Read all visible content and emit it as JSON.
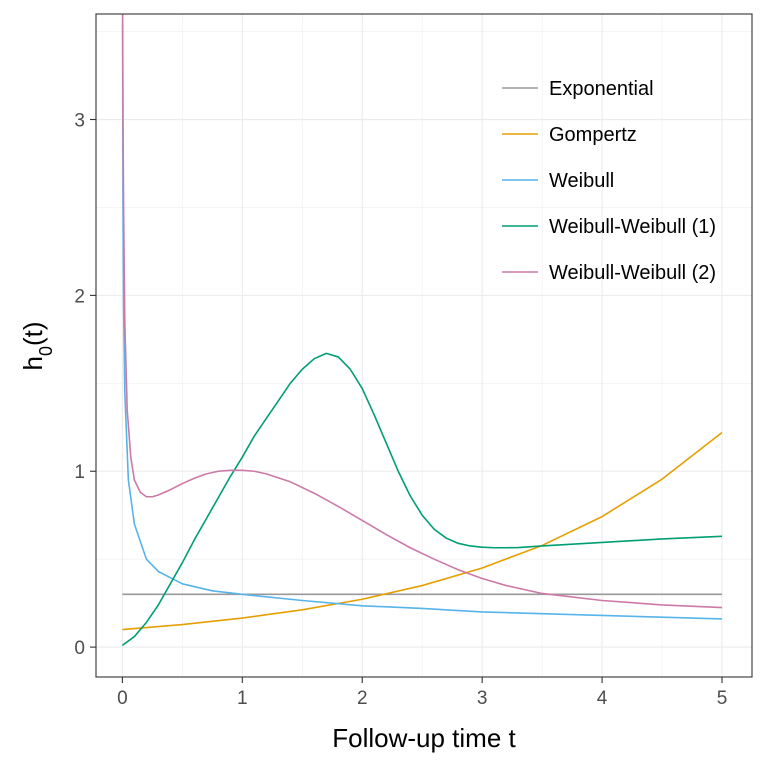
{
  "chart_data": {
    "type": "line",
    "title": "",
    "xlabel": "Follow-up time t",
    "ylabel_base": "h",
    "ylabel_sub": "0",
    "ylabel_tail": "(t)",
    "xlim": [
      -0.22,
      5.25
    ],
    "ylim": [
      -0.17,
      3.6
    ],
    "x_ticks": [
      0,
      1,
      2,
      3,
      4,
      5
    ],
    "x_tick_labels": [
      "0",
      "1",
      "2",
      "3",
      "4",
      "5"
    ],
    "y_ticks": [
      0,
      1,
      2,
      3
    ],
    "y_tick_labels": [
      "0",
      "1",
      "2",
      "3"
    ],
    "grid": true,
    "legend_position": "top-right",
    "series": [
      {
        "name": "Exponential",
        "color": "#999999",
        "x": [
          0,
          5
        ],
        "y": [
          0.3,
          0.3
        ]
      },
      {
        "name": "Gompertz",
        "color": "#E69F00",
        "x": [
          0,
          0.5,
          1,
          1.5,
          2,
          2.5,
          3,
          3.5,
          4,
          4.5,
          5
        ],
        "y": [
          0.1,
          0.128,
          0.165,
          0.212,
          0.272,
          0.35,
          0.45,
          0.578,
          0.742,
          0.955,
          1.22
        ]
      },
      {
        "name": "Weibull",
        "color": "#56B4E9",
        "x": [
          0.002,
          0.005,
          0.01,
          0.02,
          0.05,
          0.1,
          0.2,
          0.3,
          0.5,
          0.75,
          1,
          1.5,
          2,
          2.5,
          3,
          3.5,
          4,
          4.5,
          5
        ],
        "y": [
          3.55,
          2.6,
          1.95,
          1.45,
          0.95,
          0.7,
          0.5,
          0.43,
          0.36,
          0.32,
          0.3,
          0.265,
          0.235,
          0.22,
          0.2,
          0.19,
          0.18,
          0.17,
          0.16
        ]
      },
      {
        "name": "Weibull-Weibull (1)",
        "color": "#009E73",
        "x": [
          0,
          0.1,
          0.2,
          0.3,
          0.4,
          0.5,
          0.6,
          0.7,
          0.8,
          0.9,
          1.0,
          1.1,
          1.2,
          1.3,
          1.4,
          1.5,
          1.6,
          1.7,
          1.8,
          1.9,
          2.0,
          2.1,
          2.2,
          2.3,
          2.4,
          2.5,
          2.6,
          2.7,
          2.8,
          2.9,
          3.0,
          3.1,
          3.2,
          3.3,
          3.5,
          4.0,
          4.5,
          5.0
        ],
        "y": [
          0.01,
          0.06,
          0.14,
          0.24,
          0.36,
          0.48,
          0.61,
          0.73,
          0.85,
          0.97,
          1.08,
          1.2,
          1.3,
          1.4,
          1.5,
          1.58,
          1.64,
          1.67,
          1.65,
          1.58,
          1.47,
          1.32,
          1.16,
          1.0,
          0.86,
          0.75,
          0.67,
          0.62,
          0.59,
          0.575,
          0.568,
          0.565,
          0.565,
          0.566,
          0.575,
          0.595,
          0.615,
          0.63
        ]
      },
      {
        "name": "Weibull-Weibull (2)",
        "color": "#CC79A7",
        "x": [
          0.002,
          0.005,
          0.01,
          0.02,
          0.04,
          0.07,
          0.1,
          0.15,
          0.2,
          0.25,
          0.3,
          0.4,
          0.5,
          0.6,
          0.7,
          0.8,
          0.9,
          1.0,
          1.1,
          1.2,
          1.4,
          1.6,
          1.8,
          2.0,
          2.2,
          2.4,
          2.6,
          2.8,
          3.0,
          3.2,
          3.5,
          4.0,
          4.5,
          5.0
        ],
        "y": [
          3.6,
          3.0,
          2.5,
          1.85,
          1.35,
          1.08,
          0.95,
          0.88,
          0.855,
          0.855,
          0.865,
          0.895,
          0.93,
          0.96,
          0.985,
          1.0,
          1.005,
          1.005,
          1.0,
          0.985,
          0.94,
          0.875,
          0.8,
          0.72,
          0.64,
          0.565,
          0.5,
          0.44,
          0.39,
          0.35,
          0.305,
          0.265,
          0.24,
          0.225
        ]
      }
    ]
  }
}
